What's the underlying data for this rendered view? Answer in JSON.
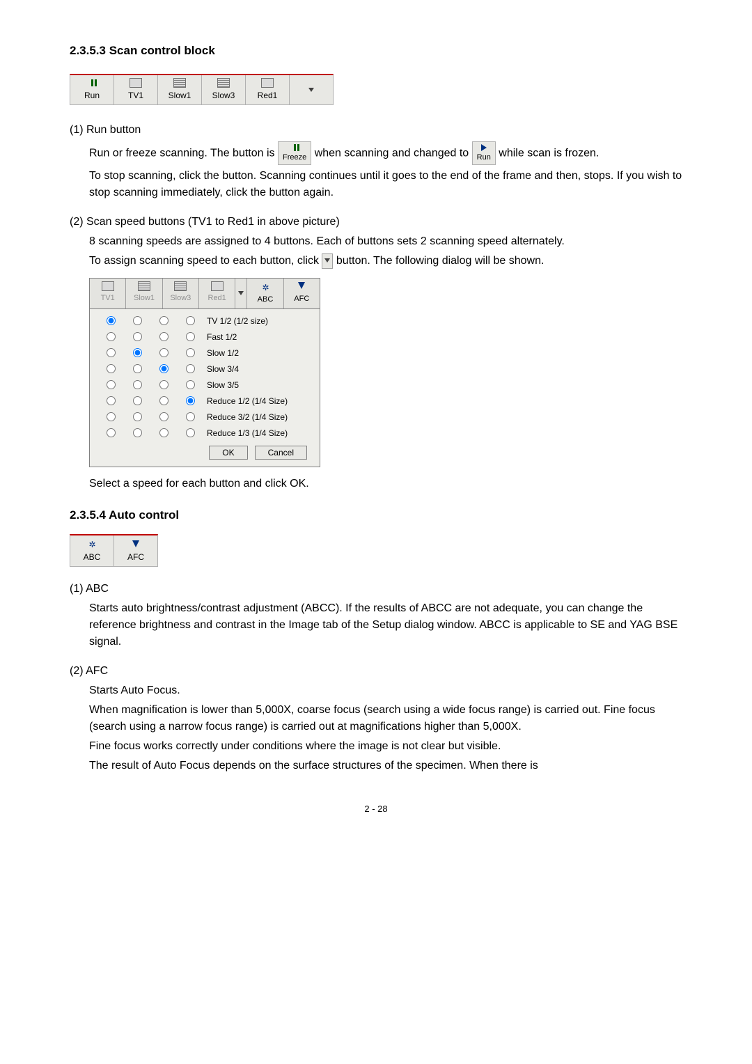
{
  "headings": {
    "scan_control": "2.3.5.3   Scan control block",
    "auto_control": "2.3.5.4   Auto control"
  },
  "toolbar_scan": {
    "btns": [
      {
        "label": "Run",
        "icon": "pause"
      },
      {
        "label": "TV1",
        "icon": "rect"
      },
      {
        "label": "Slow1",
        "icon": "lines"
      },
      {
        "label": "Slow3",
        "icon": "lines"
      },
      {
        "label": "Red1",
        "icon": "rect"
      }
    ]
  },
  "toolbar_auto": {
    "btns": [
      {
        "label": "ABC",
        "icon": "abc"
      },
      {
        "label": "AFC",
        "icon": "afc"
      }
    ]
  },
  "inline_buttons": {
    "freeze": "Freeze",
    "run": "Run"
  },
  "speed_dialog": {
    "tabs": [
      "TV1",
      "Slow1",
      "Slow3",
      "Red1",
      "",
      "ABC",
      "AFC"
    ],
    "rows": [
      {
        "sel": 0,
        "label": "TV 1/2 (1/2 size)"
      },
      {
        "sel": -1,
        "label": "Fast 1/2"
      },
      {
        "sel": 1,
        "label": "Slow 1/2"
      },
      {
        "sel": 2,
        "label": "Slow 3/4"
      },
      {
        "sel": -1,
        "label": "Slow 3/5"
      },
      {
        "sel": 3,
        "label": "Reduce 1/2 (1/4 Size)"
      },
      {
        "sel": -1,
        "label": "Reduce 3/2 (1/4 Size)"
      },
      {
        "sel": -1,
        "label": "Reduce 1/3 (1/4 Size)"
      }
    ],
    "ok": "OK",
    "cancel": "Cancel"
  },
  "text": {
    "run_button_h": "(1) Run button",
    "run_p1a": "Run or freeze scanning. The button is ",
    "run_p1b": " when scanning and changed to ",
    "run_p1c": " while scan is frozen.",
    "run_p2": "To stop scanning, click the button. Scanning continues until it goes to the end of the frame and then, stops.    If you wish to stop scanning immediately, click the button again.",
    "speed_h": "(2) Scan speed buttons (TV1 to Red1 in above picture)",
    "speed_p1": "8 scanning speeds are assigned to 4 buttons. Each of buttons sets 2 scanning speed alternately.",
    "speed_p2a": "To assign scanning speed to each button, click ",
    "speed_p2b": " button. The following dialog will be shown.",
    "speed_p3": "Select a speed for each button and click OK.",
    "abc_h": "(1) ABC",
    "abc_p": "Starts auto brightness/contrast adjustment (ABCC). If the results of ABCC are not adequate, you can change the reference brightness and contrast in the Image tab of the Setup dialog window. ABCC is applicable to SE and YAG BSE signal.",
    "afc_h": "(2) AFC",
    "afc_p1": "Starts Auto Focus.",
    "afc_p2": "When magnification is lower than 5,000X, coarse focus (search using a wide focus range) is carried out. Fine focus (search using a narrow focus range) is carried out at magnifications higher than 5,000X.",
    "afc_p3": "Fine focus works correctly under conditions where the image is not clear but visible.",
    "afc_p4": "The result of Auto Focus depends on the surface structures of the specimen.    When there is"
  },
  "footer": "2 - 28"
}
